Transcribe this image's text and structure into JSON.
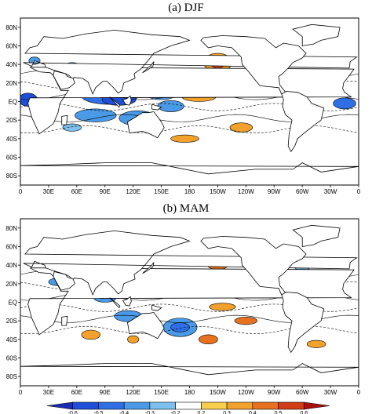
{
  "panels": [
    {
      "title": "(a) DJF",
      "id": "djf"
    },
    {
      "title": "(b) MAM",
      "id": "mam"
    }
  ],
  "lat_labels": [
    "80N",
    "60N",
    "40N",
    "20N",
    "EQ",
    "20S",
    "40S",
    "60S",
    "80S"
  ],
  "lon_labels": [
    "0",
    "30E",
    "60E",
    "90E",
    "120E",
    "150E",
    "180",
    "150W",
    "120W",
    "90W",
    "60W",
    "30W",
    "0"
  ],
  "colorbar": {
    "ticks": [
      "-0.6",
      "-0.5",
      "-0.4",
      "-0.3",
      "-0.2",
      "0.2",
      "0.3",
      "0.4",
      "0.5",
      "0.6"
    ],
    "colors": [
      "#1a2bb5",
      "#1f4fd8",
      "#2e6fe6",
      "#4b9ae8",
      "#7cc1f0",
      "#ffffff",
      "#f7cf4a",
      "#f1a12c",
      "#e7711f",
      "#d33d16",
      "#a8110f"
    ]
  }
}
